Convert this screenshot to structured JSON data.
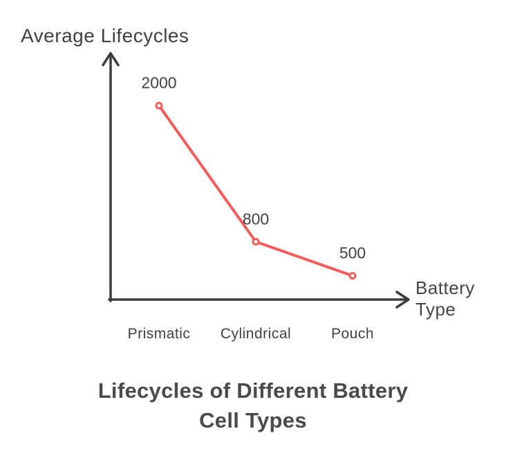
{
  "chart_data": {
    "type": "line",
    "title": "Lifecycles of Different Battery Cell Types",
    "title_lines": [
      "Lifecycles of Different Battery",
      "Cell Types"
    ],
    "xlabel": "Battery Type",
    "xlabel_lines": [
      "Battery",
      "Type"
    ],
    "ylabel": "Average Lifecycles",
    "categories": [
      "Prismatic",
      "Cylindrical",
      "Pouch"
    ],
    "series": [
      {
        "name": "Average Lifecycles",
        "values": [
          2000,
          800,
          500
        ]
      }
    ],
    "point_labels": [
      "2000",
      "800",
      "500"
    ],
    "ylim": [
      290,
      2120
    ],
    "grid": false,
    "legend": false,
    "marker": "open-circle"
  },
  "colors": {
    "line": "#f45c5c",
    "marker_fill": "#ffffff",
    "axis": "#3d3d3d",
    "label_text": "#414141",
    "title_text": "#4a4a4a",
    "background": "#ffffff"
  }
}
